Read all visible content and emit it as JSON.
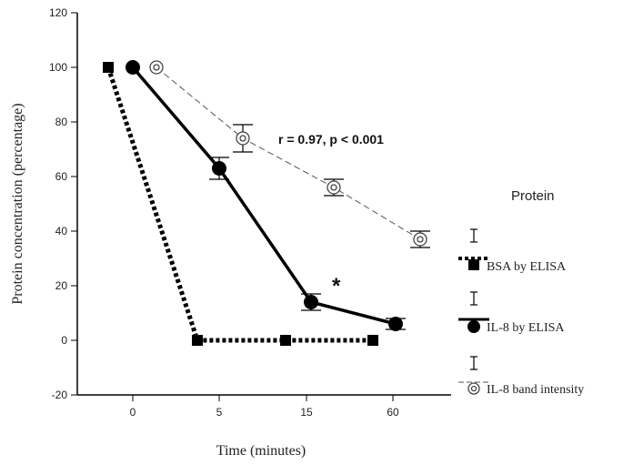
{
  "chart_data": {
    "type": "line",
    "x_label": "Time (minutes)",
    "y_label": "Protein concentration (percentage)",
    "categories": [
      "0",
      "5",
      "15",
      "60"
    ],
    "ylim": [
      -20,
      120
    ],
    "y_ticks": [
      "120",
      "100",
      "80",
      "60",
      "40",
      "20",
      "0",
      "-20"
    ],
    "legend_title": "Protein",
    "legend_position": "right",
    "grid": false,
    "annotation": "r = 0.97, p < 0.001",
    "significance_marker": "*",
    "series": [
      {
        "name": "BSA by ELISA",
        "line_style": "dotted-thick",
        "marker": "square",
        "color": "#000000",
        "points": [
          {
            "time": "0",
            "value": 100
          },
          {
            "time": "5",
            "value": 0
          },
          {
            "time": "15",
            "value": 0
          },
          {
            "time": "60",
            "value": 0
          }
        ]
      },
      {
        "name": "IL-8 by ELISA",
        "line_style": "solid-thick",
        "marker": "circle",
        "color": "#000000",
        "points": [
          {
            "time": "0",
            "value": 100,
            "error": 0
          },
          {
            "time": "5",
            "value": 63,
            "error": 4
          },
          {
            "time": "15",
            "value": 14,
            "error": 3
          },
          {
            "time": "60",
            "value": 6,
            "error": 2
          }
        ]
      },
      {
        "name": "IL-8 band intensity",
        "line_style": "dashed-thin",
        "marker": "double-circle",
        "color": "#555555",
        "points": [
          {
            "time": "0",
            "value": 100,
            "error": 0
          },
          {
            "time": "5",
            "value": 74,
            "error": 5
          },
          {
            "time": "15",
            "value": 56,
            "error": 3
          },
          {
            "time": "60",
            "value": 37,
            "error": 3
          }
        ]
      }
    ]
  }
}
